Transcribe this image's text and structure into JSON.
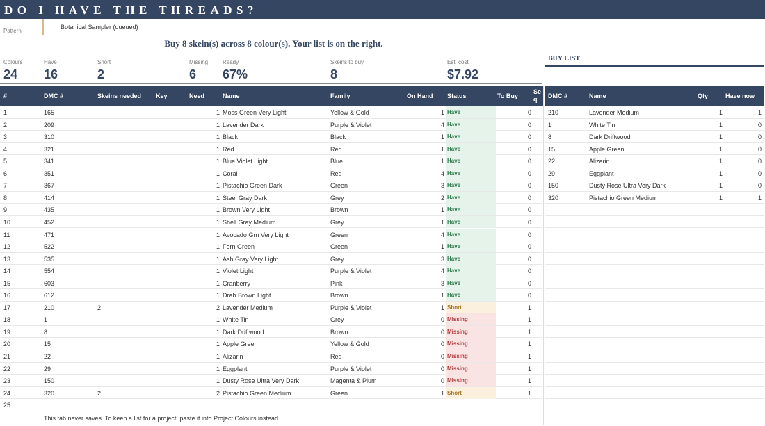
{
  "banner": {
    "title": "DO I HAVE THE THREADS?"
  },
  "pattern": {
    "label": "Pattern",
    "value": "Botanical Sampler (queued)"
  },
  "summary": "Buy 8 skein(s) across 8 colour(s). Your list is on the right.",
  "stats": [
    {
      "label": "Colours",
      "value": "24"
    },
    {
      "label": "Have",
      "value": "16"
    },
    {
      "label": "Short",
      "value": "2"
    },
    {
      "label": "Missing",
      "value": "6"
    },
    {
      "label": "Ready",
      "value": "67%"
    },
    {
      "label": "Skeins to buy",
      "value": "8"
    },
    {
      "label": "Est. cost",
      "value": "$7.92"
    }
  ],
  "buylist_title": "BUY LIST",
  "table_headers": {
    "num": "#",
    "dmc": "DMC #",
    "skeins": "Skeins needed",
    "key": "Key",
    "need": "Need",
    "name": "Name",
    "family": "Family",
    "onhand": "On Hand",
    "status": "Status",
    "tobuy": "To Buy",
    "seq": "Se q"
  },
  "rows": [
    {
      "num": "1",
      "dmc": "165",
      "skeins": "",
      "need": "1",
      "name": "Moss Green Very Light",
      "family": "Yellow & Gold",
      "onhand": "1",
      "status": "Have",
      "tobuy": "0"
    },
    {
      "num": "2",
      "dmc": "209",
      "skeins": "",
      "need": "1",
      "name": "Lavender Dark",
      "family": "Purple & Violet",
      "onhand": "4",
      "status": "Have",
      "tobuy": "0"
    },
    {
      "num": "3",
      "dmc": "310",
      "skeins": "",
      "need": "1",
      "name": "Black",
      "family": "Black",
      "onhand": "1",
      "status": "Have",
      "tobuy": "0"
    },
    {
      "num": "4",
      "dmc": "321",
      "skeins": "",
      "need": "1",
      "name": "Red",
      "family": "Red",
      "onhand": "1",
      "status": "Have",
      "tobuy": "0"
    },
    {
      "num": "5",
      "dmc": "341",
      "skeins": "",
      "need": "1",
      "name": "Blue Violet Light",
      "family": "Blue",
      "onhand": "1",
      "status": "Have",
      "tobuy": "0"
    },
    {
      "num": "6",
      "dmc": "351",
      "skeins": "",
      "need": "1",
      "name": "Coral",
      "family": "Red",
      "onhand": "4",
      "status": "Have",
      "tobuy": "0"
    },
    {
      "num": "7",
      "dmc": "367",
      "skeins": "",
      "need": "1",
      "name": "Pistachio Green Dark",
      "family": "Green",
      "onhand": "3",
      "status": "Have",
      "tobuy": "0"
    },
    {
      "num": "8",
      "dmc": "414",
      "skeins": "",
      "need": "1",
      "name": "Steel Gray Dark",
      "family": "Grey",
      "onhand": "2",
      "status": "Have",
      "tobuy": "0"
    },
    {
      "num": "9",
      "dmc": "435",
      "skeins": "",
      "need": "1",
      "name": "Brown Very Light",
      "family": "Brown",
      "onhand": "1",
      "status": "Have",
      "tobuy": "0"
    },
    {
      "num": "10",
      "dmc": "452",
      "skeins": "",
      "need": "1",
      "name": "Shell Gray Medium",
      "family": "Grey",
      "onhand": "1",
      "status": "Have",
      "tobuy": "0"
    },
    {
      "num": "11",
      "dmc": "471",
      "skeins": "",
      "need": "1",
      "name": "Avocado Grn Very Light",
      "family": "Green",
      "onhand": "4",
      "status": "Have",
      "tobuy": "0"
    },
    {
      "num": "12",
      "dmc": "522",
      "skeins": "",
      "need": "1",
      "name": "Fern Green",
      "family": "Green",
      "onhand": "1",
      "status": "Have",
      "tobuy": "0"
    },
    {
      "num": "13",
      "dmc": "535",
      "skeins": "",
      "need": "1",
      "name": "Ash Gray Very Light",
      "family": "Grey",
      "onhand": "3",
      "status": "Have",
      "tobuy": "0"
    },
    {
      "num": "14",
      "dmc": "554",
      "skeins": "",
      "need": "1",
      "name": "Violet Light",
      "family": "Purple & Violet",
      "onhand": "4",
      "status": "Have",
      "tobuy": "0"
    },
    {
      "num": "15",
      "dmc": "603",
      "skeins": "",
      "need": "1",
      "name": "Cranberry",
      "family": "Pink",
      "onhand": "3",
      "status": "Have",
      "tobuy": "0"
    },
    {
      "num": "16",
      "dmc": "612",
      "skeins": "",
      "need": "1",
      "name": "Drab Brown Light",
      "family": "Brown",
      "onhand": "1",
      "status": "Have",
      "tobuy": "0"
    },
    {
      "num": "17",
      "dmc": "210",
      "skeins": "2",
      "need": "2",
      "name": "Lavender Medium",
      "family": "Purple & Violet",
      "onhand": "1",
      "status": "Short",
      "tobuy": "1"
    },
    {
      "num": "18",
      "dmc": "1",
      "skeins": "",
      "need": "1",
      "name": "White Tin",
      "family": "Grey",
      "onhand": "0",
      "status": "Missing",
      "tobuy": "1"
    },
    {
      "num": "19",
      "dmc": "8",
      "skeins": "",
      "need": "1",
      "name": "Dark Driftwood",
      "family": "Brown",
      "onhand": "0",
      "status": "Missing",
      "tobuy": "1"
    },
    {
      "num": "20",
      "dmc": "15",
      "skeins": "",
      "need": "1",
      "name": "Apple Green",
      "family": "Yellow & Gold",
      "onhand": "0",
      "status": "Missing",
      "tobuy": "1"
    },
    {
      "num": "21",
      "dmc": "22",
      "skeins": "",
      "need": "1",
      "name": "Alizarin",
      "family": "Red",
      "onhand": "0",
      "status": "Missing",
      "tobuy": "1"
    },
    {
      "num": "22",
      "dmc": "29",
      "skeins": "",
      "need": "1",
      "name": "Eggplant",
      "family": "Purple & Violet",
      "onhand": "0",
      "status": "Missing",
      "tobuy": "1"
    },
    {
      "num": "23",
      "dmc": "150",
      "skeins": "",
      "need": "1",
      "name": "Dusty Rose Ultra Very Dark",
      "family": "Magenta & Plum",
      "onhand": "0",
      "status": "Missing",
      "tobuy": "1"
    },
    {
      "num": "24",
      "dmc": "320",
      "skeins": "2",
      "need": "2",
      "name": "Pistachio Green Medium",
      "family": "Green",
      "onhand": "1",
      "status": "Short",
      "tobuy": "1"
    },
    {
      "num": "25",
      "dmc": "",
      "skeins": "",
      "need": "",
      "name": "",
      "family": "",
      "onhand": "",
      "status": "",
      "tobuy": ""
    }
  ],
  "buy_headers": {
    "dmc": "DMC #",
    "name": "Name",
    "qty": "Qty",
    "have": "Have now"
  },
  "buy_rows": [
    {
      "dmc": "210",
      "name": "Lavender Medium",
      "qty": "1",
      "have": "1"
    },
    {
      "dmc": "1",
      "name": "White Tin",
      "qty": "1",
      "have": "0"
    },
    {
      "dmc": "8",
      "name": "Dark Driftwood",
      "qty": "1",
      "have": "0"
    },
    {
      "dmc": "15",
      "name": "Apple Green",
      "qty": "1",
      "have": "0"
    },
    {
      "dmc": "22",
      "name": "Alizarin",
      "qty": "1",
      "have": "0"
    },
    {
      "dmc": "29",
      "name": "Eggplant",
      "qty": "1",
      "have": "0"
    },
    {
      "dmc": "150",
      "name": "Dusty Rose Ultra Very Dark",
      "qty": "1",
      "have": "0"
    },
    {
      "dmc": "320",
      "name": "Pistachio Green Medium",
      "qty": "1",
      "have": "1"
    }
  ],
  "footer": "This tab never saves. To keep a list for a project, paste it into Project Colours instead.",
  "colors": {
    "header": "#344662",
    "have_bg": "#e6f3ea",
    "short_bg": "#fbf0dd",
    "missing_bg": "#f9e3e3",
    "accent": "#d6b98a"
  }
}
